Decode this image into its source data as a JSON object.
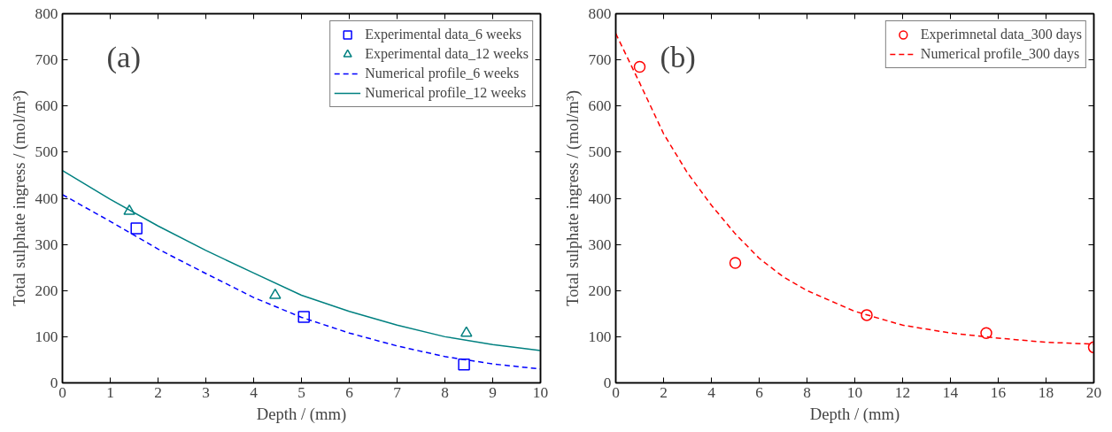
{
  "chart_data": [
    {
      "type": "scatter",
      "annotations": [
        "(a)"
      ],
      "xlabel": "Depth / (mm)",
      "ylabel": "Total sulphate ingress / (mol/m³)",
      "xlim": [
        0,
        10
      ],
      "ylim": [
        0,
        800
      ],
      "xticks": [
        0,
        1,
        2,
        3,
        4,
        5,
        6,
        7,
        8,
        9,
        10
      ],
      "yticks": [
        0,
        100,
        200,
        300,
        400,
        500,
        600,
        700,
        800
      ],
      "grid": false,
      "legend": "top right",
      "series": [
        {
          "name": "Experimental data_6 weeks",
          "marker": "square",
          "color": "#0000ff",
          "x": [
            1.55,
            5.05,
            8.4
          ],
          "values": [
            335,
            143,
            40
          ]
        },
        {
          "name": "Experimental data_12 weeks",
          "marker": "triangle",
          "color": "#008080",
          "x": [
            1.4,
            4.45,
            8.45
          ],
          "values": [
            372,
            190,
            108
          ]
        },
        {
          "name": "Numerical profile_6 weeks",
          "type": "line",
          "line_style": "dashed",
          "color": "#0000ff",
          "x": [
            0,
            1,
            2,
            3,
            4,
            5,
            6,
            7,
            8,
            9,
            10
          ],
          "values": [
            408,
            350,
            290,
            237,
            185,
            142,
            108,
            80,
            57,
            41,
            30
          ]
        },
        {
          "name": "Numerical profile_12 weeks",
          "type": "line",
          "line_style": "solid",
          "color": "#008080",
          "x": [
            0,
            1,
            2,
            3,
            4,
            5,
            6,
            7,
            8,
            9,
            10
          ],
          "values": [
            460,
            398,
            340,
            287,
            238,
            190,
            155,
            125,
            100,
            83,
            70
          ]
        }
      ]
    },
    {
      "type": "scatter",
      "annotations": [
        "(b)"
      ],
      "xlabel": "Depth / (mm)",
      "ylabel": "Total sulphate ingress / (mol/m³)",
      "xlim": [
        0,
        20
      ],
      "ylim": [
        0,
        800
      ],
      "xticks": [
        0,
        2,
        4,
        6,
        8,
        10,
        12,
        14,
        16,
        18,
        20
      ],
      "yticks": [
        0,
        100,
        200,
        300,
        400,
        500,
        600,
        700,
        800
      ],
      "grid": false,
      "legend": "top right",
      "series": [
        {
          "name": "Experimnetal data_300 days",
          "marker": "circle",
          "color": "#ff0000",
          "x": [
            1,
            5,
            10.5,
            15.5,
            20
          ],
          "values": [
            685,
            260,
            147,
            108,
            77
          ]
        },
        {
          "name": "Numerical profile_300 days",
          "type": "line",
          "line_style": "dashed",
          "color": "#ff0000",
          "x": [
            0,
            1,
            2,
            3,
            4,
            5,
            6,
            7,
            8,
            10,
            12,
            14,
            16,
            18,
            20
          ],
          "values": [
            757,
            650,
            540,
            455,
            385,
            323,
            270,
            230,
            200,
            155,
            125,
            108,
            97,
            88,
            84
          ]
        }
      ]
    }
  ]
}
